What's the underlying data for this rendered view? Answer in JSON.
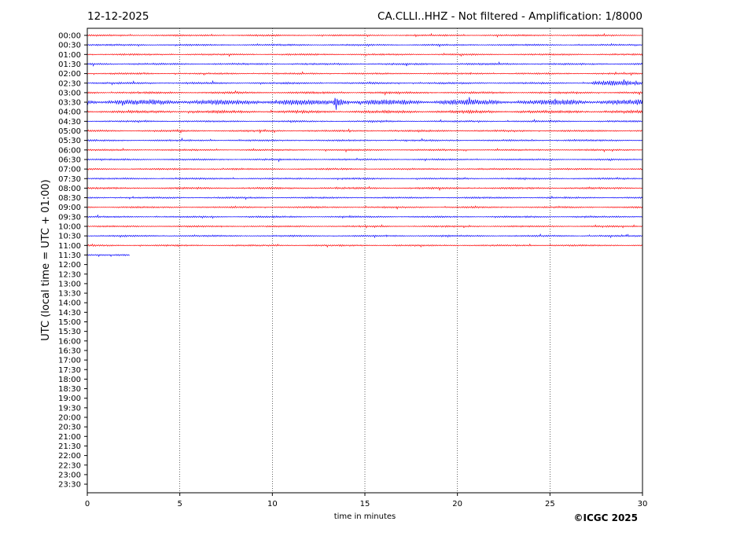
{
  "header": {
    "date": "12-12-2025",
    "station_info": "CA.CLLI..HHZ - Not filtered - Amplification: 1/8000"
  },
  "footer": {
    "copyright": "©ICGC 2025"
  },
  "colors": {
    "red": "#ff0000",
    "blue": "#0000ff",
    "axis": "#000000",
    "grid": "#000000"
  },
  "chart_data": {
    "type": "line",
    "title": "CA.CLLI..HHZ - Not filtered - Amplification: 1/8000",
    "xlabel": "time in minutes",
    "ylabel": "UTC (local time = UTC + 01:00)",
    "xlim": [
      0,
      30
    ],
    "x_ticks": [
      "0",
      "5",
      "10",
      "15",
      "20",
      "25",
      "30"
    ],
    "grid": "vertical dotted lines at 5-minute ticks",
    "row_labels": [
      "00:00",
      "00:30",
      "01:00",
      "01:30",
      "02:00",
      "02:30",
      "03:00",
      "03:30",
      "04:00",
      "04:30",
      "05:00",
      "05:30",
      "06:00",
      "06:30",
      "07:00",
      "07:30",
      "08:00",
      "08:30",
      "09:00",
      "09:30",
      "10:00",
      "10:30",
      "11:00",
      "11:30",
      "12:00",
      "12:30",
      "13:00",
      "13:30",
      "14:00",
      "14:30",
      "15:00",
      "15:30",
      "16:00",
      "16:30",
      "17:00",
      "17:30",
      "18:00",
      "18:30",
      "19:00",
      "19:30",
      "20:00",
      "20:30",
      "21:00",
      "21:30",
      "22:00",
      "22:30",
      "23:00",
      "23:30"
    ],
    "traces": [
      {
        "row": "00:00",
        "color": "red",
        "minutes": 30,
        "amplitude": 0.8
      },
      {
        "row": "00:30",
        "color": "blue",
        "minutes": 30,
        "amplitude": 0.8
      },
      {
        "row": "01:00",
        "color": "red",
        "minutes": 30,
        "amplitude": 0.8
      },
      {
        "row": "01:30",
        "color": "blue",
        "minutes": 30,
        "amplitude": 0.9
      },
      {
        "row": "02:00",
        "color": "red",
        "minutes": 30,
        "amplitude": 0.8
      },
      {
        "row": "02:30",
        "color": "blue",
        "minutes": 30,
        "amplitude": 0.9,
        "burst_minutes": [
          27.3,
          30
        ]
      },
      {
        "row": "03:00",
        "color": "red",
        "minutes": 30,
        "amplitude": 1.0
      },
      {
        "row": "03:30",
        "color": "blue",
        "minutes": 30,
        "amplitude": 2.6,
        "burst_minutes": [
          13.3,
          14.0
        ]
      },
      {
        "row": "04:00",
        "color": "red",
        "minutes": 30,
        "amplitude": 1.4
      },
      {
        "row": "04:30",
        "color": "blue",
        "minutes": 30,
        "amplitude": 0.8
      },
      {
        "row": "05:00",
        "color": "red",
        "minutes": 30,
        "amplitude": 0.9
      },
      {
        "row": "05:30",
        "color": "blue",
        "minutes": 30,
        "amplitude": 0.8
      },
      {
        "row": "06:00",
        "color": "red",
        "minutes": 30,
        "amplitude": 0.8
      },
      {
        "row": "06:30",
        "color": "blue",
        "minutes": 30,
        "amplitude": 0.8
      },
      {
        "row": "07:00",
        "color": "red",
        "minutes": 30,
        "amplitude": 0.8
      },
      {
        "row": "07:30",
        "color": "blue",
        "minutes": 30,
        "amplitude": 0.8
      },
      {
        "row": "08:00",
        "color": "red",
        "minutes": 30,
        "amplitude": 0.9
      },
      {
        "row": "08:30",
        "color": "blue",
        "minutes": 30,
        "amplitude": 0.8
      },
      {
        "row": "09:00",
        "color": "red",
        "minutes": 30,
        "amplitude": 0.8
      },
      {
        "row": "09:30",
        "color": "blue",
        "minutes": 30,
        "amplitude": 0.8
      },
      {
        "row": "10:00",
        "color": "red",
        "minutes": 30,
        "amplitude": 0.8
      },
      {
        "row": "10:30",
        "color": "blue",
        "minutes": 30,
        "amplitude": 0.8
      },
      {
        "row": "11:00",
        "color": "red",
        "minutes": 30,
        "amplitude": 0.8
      },
      {
        "row": "11:30",
        "color": "blue",
        "minutes": 2.3,
        "amplitude": 0.7
      }
    ]
  }
}
